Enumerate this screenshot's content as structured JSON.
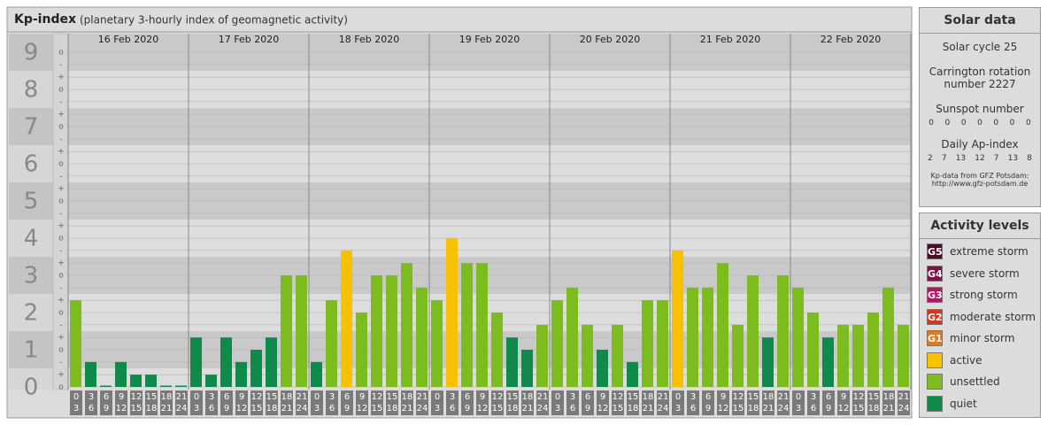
{
  "chart_data": {
    "type": "bar",
    "title": "Kp-index",
    "subtitle": "(planetary 3-hourly index of geomagnetic activity)",
    "days": [
      "16 Feb 2020",
      "17 Feb 2020",
      "18 Feb 2020",
      "19 Feb 2020",
      "20 Feb 2020",
      "21 Feb 2020",
      "22 Feb 2020"
    ],
    "hours_start": [
      0,
      3,
      6,
      9,
      12,
      15,
      18,
      21
    ],
    "hours_end": [
      3,
      6,
      9,
      12,
      15,
      18,
      21,
      24
    ],
    "values": [
      2.33,
      0.67,
      0,
      0.67,
      0.33,
      0.33,
      0,
      0,
      1.33,
      0.33,
      1.33,
      0.67,
      1,
      1.33,
      3,
      3,
      0.67,
      2.33,
      3.67,
      2,
      3,
      3,
      3.33,
      2.67,
      2.33,
      4,
      3.33,
      3.33,
      2,
      1.33,
      1,
      1.67,
      2.33,
      2.67,
      1.67,
      1,
      1.67,
      0.67,
      2.33,
      2.33,
      3.67,
      2.67,
      2.67,
      3.33,
      1.67,
      3,
      1.33,
      3,
      2.67,
      2,
      1.33,
      1.67,
      1.67,
      2,
      2.67,
      1.67
    ],
    "colors": [
      "#7dbc1f",
      "#0f8a4b",
      "#0f8a4b",
      "#0f8a4b",
      "#0f8a4b",
      "#0f8a4b",
      "#0f8a4b",
      "#0f8a4b",
      "#0f8a4b",
      "#0f8a4b",
      "#0f8a4b",
      "#0f8a4b",
      "#0f8a4b",
      "#0f8a4b",
      "#7dbc1f",
      "#7dbc1f",
      "#0f8a4b",
      "#7dbc1f",
      "#f8c100",
      "#7dbc1f",
      "#7dbc1f",
      "#7dbc1f",
      "#7dbc1f",
      "#7dbc1f",
      "#7dbc1f",
      "#f8c100",
      "#7dbc1f",
      "#7dbc1f",
      "#7dbc1f",
      "#0f8a4b",
      "#0f8a4b",
      "#7dbc1f",
      "#7dbc1f",
      "#7dbc1f",
      "#7dbc1f",
      "#0f8a4b",
      "#7dbc1f",
      "#0f8a4b",
      "#7dbc1f",
      "#7dbc1f",
      "#f8c100",
      "#7dbc1f",
      "#7dbc1f",
      "#7dbc1f",
      "#7dbc1f",
      "#7dbc1f",
      "#0f8a4b",
      "#7dbc1f",
      "#7dbc1f",
      "#7dbc1f",
      "#0f8a4b",
      "#7dbc1f",
      "#7dbc1f",
      "#7dbc1f",
      "#7dbc1f",
      "#7dbc1f"
    ],
    "ylim": [
      0,
      9.5
    ],
    "yticks": [
      0,
      1,
      2,
      3,
      4,
      5,
      6,
      7,
      8,
      9
    ],
    "minor_yticks": [
      {
        "value": 0,
        "label": "o"
      },
      {
        "value": 0.33,
        "label": "+"
      },
      {
        "value": 0.67,
        "label": "-"
      },
      {
        "value": 1,
        "label": "o"
      },
      {
        "value": 1.33,
        "label": "+"
      },
      {
        "value": 1.67,
        "label": "-"
      },
      {
        "value": 2,
        "label": "o"
      },
      {
        "value": 2.33,
        "label": "+"
      },
      {
        "value": 2.67,
        "label": "-"
      },
      {
        "value": 3,
        "label": "o"
      },
      {
        "value": 3.33,
        "label": "+"
      },
      {
        "value": 3.67,
        "label": "-"
      },
      {
        "value": 4,
        "label": "o"
      },
      {
        "value": 4.33,
        "label": "+"
      },
      {
        "value": 4.67,
        "label": "-"
      },
      {
        "value": 5,
        "label": "o"
      },
      {
        "value": 5.33,
        "label": "+"
      },
      {
        "value": 5.67,
        "label": "-"
      },
      {
        "value": 6,
        "label": "o"
      },
      {
        "value": 6.33,
        "label": "+"
      },
      {
        "value": 6.67,
        "label": "-"
      },
      {
        "value": 7,
        "label": "o"
      },
      {
        "value": 7.33,
        "label": "+"
      },
      {
        "value": 7.67,
        "label": "-"
      },
      {
        "value": 8,
        "label": "o"
      },
      {
        "value": 8.33,
        "label": "+"
      },
      {
        "value": 8.67,
        "label": "-"
      },
      {
        "value": 9,
        "label": "o"
      }
    ]
  },
  "solar_data": {
    "title": "Solar data",
    "solar_cycle": "Solar cycle 25",
    "carrington": "Carrington rotation number 2227",
    "sunspot_label": "Sunspot number",
    "sunspot_numbers": [
      0,
      0,
      0,
      0,
      0,
      0,
      0
    ],
    "ap_label": "Daily Ap-index",
    "ap_values": [
      2,
      7,
      13,
      12,
      7,
      13,
      8
    ],
    "source_note": "Kp-data from GFZ Potsdam:",
    "source_url": "http://www.gfz-potsdam.de"
  },
  "activity_levels": {
    "title": "Activity levels",
    "items": [
      {
        "badge": "G5",
        "label": "extreme storm",
        "color": "#4a0b2a"
      },
      {
        "badge": "G4",
        "label": "severe storm",
        "color": "#7d1247"
      },
      {
        "badge": "G3",
        "label": "strong storm",
        "color": "#b5165f"
      },
      {
        "badge": "G2",
        "label": "moderate storm",
        "color": "#d2381c"
      },
      {
        "badge": "G1",
        "label": "minor storm",
        "color": "#e07a1c"
      },
      {
        "label": "active",
        "color": "#f8c100"
      },
      {
        "label": "unsettled",
        "color": "#7dbc1f"
      },
      {
        "label": "quiet",
        "color": "#0f8a4b"
      }
    ]
  }
}
